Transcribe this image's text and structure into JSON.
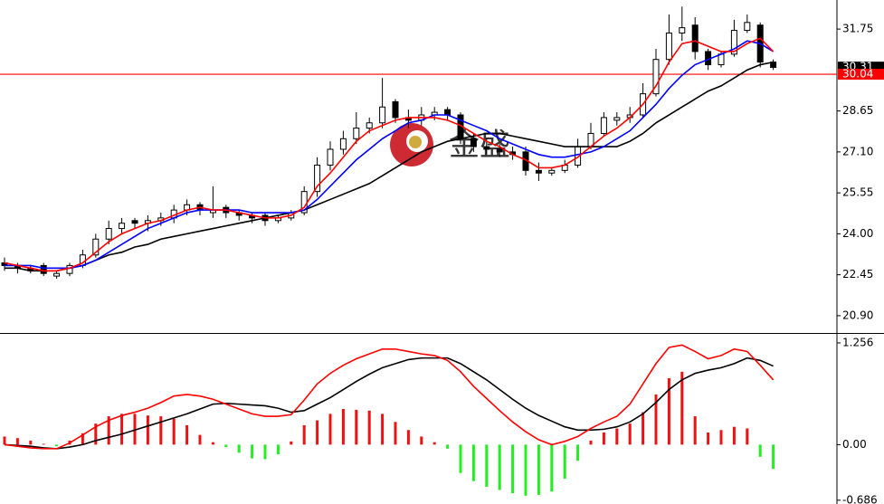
{
  "watermark": "金盛",
  "chart_data": [
    {
      "type": "candlestick",
      "ylim": [
        20.28,
        32.85
      ],
      "yticks": [
        31.75,
        28.65,
        {
          "value": 27.1,
          "label": "27.10"
        },
        25.55,
        {
          "value": 24,
          "label": "24.00"
        },
        22.45,
        {
          "value": 20.9,
          "label": "20.90"
        }
      ],
      "last_price": 30.31,
      "reference_line": 30.04,
      "reference_color": "#ff0000",
      "open": [
        22.9,
        22.8,
        22.7,
        22.8,
        22.4,
        22.5,
        22.8,
        23.2,
        23.8,
        24.2,
        24.5,
        24.4,
        24.5,
        24.6,
        24.9,
        25.1,
        24.8,
        25.0,
        24.8,
        24.7,
        24.7,
        24.5,
        24.6,
        24.8,
        25.6,
        26.6,
        27.2,
        27.6,
        28.0,
        28.2,
        29.0,
        28.4,
        28.3,
        28.5,
        28.7,
        28.5,
        27.6,
        27.3,
        27.2,
        27.1,
        27.1,
        26.4,
        26.3,
        26.4,
        26.6,
        27.3,
        27.8,
        28.3,
        28.4,
        28.5,
        29.3,
        30.6,
        31.6,
        31.9,
        30.9,
        30.4,
        30.8,
        31.7,
        31.9,
        30.5
      ],
      "high": [
        23.1,
        22.9,
        22.8,
        22.9,
        22.6,
        22.9,
        23.4,
        24.0,
        24.5,
        24.6,
        24.6,
        24.7,
        24.8,
        25.1,
        25.3,
        25.2,
        25.8,
        25.1,
        24.9,
        24.8,
        24.8,
        24.7,
        24.9,
        25.8,
        26.9,
        27.5,
        27.9,
        28.6,
        28.4,
        29.9,
        29.1,
        28.7,
        28.8,
        28.8,
        28.8,
        28.6,
        27.8,
        27.6,
        27.4,
        27.3,
        27.3,
        26.7,
        26.5,
        26.8,
        27.6,
        28.2,
        28.6,
        28.6,
        28.8,
        29.7,
        31.0,
        32.3,
        32.6,
        32.2,
        31.0,
        30.9,
        32.1,
        32.3,
        32.0,
        30.6
      ],
      "low": [
        22.6,
        22.5,
        22.5,
        22.4,
        22.3,
        22.4,
        22.7,
        23.1,
        23.6,
        24.0,
        24.2,
        24.1,
        24.3,
        24.4,
        24.7,
        24.7,
        24.6,
        24.6,
        24.5,
        24.4,
        24.3,
        24.4,
        24.5,
        24.7,
        25.4,
        26.4,
        27.0,
        27.4,
        27.8,
        28.0,
        28.2,
        28.0,
        28.1,
        28.3,
        28.3,
        27.4,
        27.1,
        27.0,
        26.9,
        26.8,
        26.2,
        26.0,
        26.2,
        26.3,
        26.5,
        27.2,
        27.7,
        28.1,
        28.2,
        28.4,
        29.2,
        30.4,
        31.3,
        30.6,
        30.2,
        30.3,
        30.7,
        31.6,
        30.3,
        30.2
      ],
      "close": [
        22.8,
        22.7,
        22.6,
        22.5,
        22.5,
        22.8,
        23.2,
        23.8,
        24.2,
        24.4,
        24.4,
        24.5,
        24.6,
        24.9,
        25.1,
        24.9,
        24.9,
        24.8,
        24.7,
        24.6,
        24.5,
        24.6,
        24.8,
        25.6,
        26.6,
        27.2,
        27.6,
        28.0,
        28.2,
        28.8,
        28.4,
        28.3,
        28.5,
        28.6,
        28.5,
        27.6,
        27.3,
        27.2,
        27.1,
        27.0,
        26.4,
        26.3,
        26.4,
        26.6,
        27.3,
        27.8,
        28.4,
        28.4,
        28.5,
        29.3,
        30.6,
        31.6,
        31.8,
        30.9,
        30.4,
        30.8,
        31.7,
        32.0,
        30.5,
        30.3
      ],
      "series": [
        {
          "color": "#000000",
          "values": [
            22.7,
            22.7,
            22.6,
            22.6,
            22.6,
            22.7,
            22.8,
            23.0,
            23.2,
            23.3,
            23.5,
            23.6,
            23.8,
            23.9,
            24.0,
            24.1,
            24.2,
            24.3,
            24.4,
            24.5,
            24.6,
            24.7,
            24.8,
            24.9,
            25.1,
            25.3,
            25.5,
            25.7,
            25.9,
            26.2,
            26.5,
            26.8,
            27.1,
            27.3,
            27.5,
            27.6,
            27.7,
            27.8,
            27.8,
            27.7,
            27.6,
            27.5,
            27.4,
            27.3,
            27.3,
            27.3,
            27.3,
            27.3,
            27.5,
            27.8,
            28.2,
            28.5,
            28.8,
            29.1,
            29.4,
            29.6,
            29.9,
            30.2,
            30.4,
            30.5
          ]
        },
        {
          "color": "#0000ff",
          "values": [
            22.8,
            22.8,
            22.8,
            22.7,
            22.7,
            22.7,
            22.8,
            23.0,
            23.3,
            23.6,
            23.9,
            24.2,
            24.4,
            24.6,
            24.8,
            24.9,
            24.9,
            24.9,
            24.9,
            24.8,
            24.8,
            24.8,
            24.8,
            24.9,
            25.3,
            25.8,
            26.3,
            26.8,
            27.2,
            27.6,
            27.9,
            28.2,
            28.3,
            28.5,
            28.5,
            28.3,
            28.1,
            27.9,
            27.6,
            27.4,
            27.2,
            27.0,
            26.9,
            26.9,
            27.0,
            27.1,
            27.3,
            27.6,
            27.9,
            28.4,
            28.9,
            29.5,
            30.0,
            30.4,
            30.6,
            30.8,
            31.0,
            31.3,
            31.2,
            30.9
          ]
        },
        {
          "color": "#ff0000",
          "values": [
            22.9,
            22.8,
            22.7,
            22.6,
            22.6,
            22.7,
            22.9,
            23.3,
            23.7,
            24.0,
            24.2,
            24.4,
            24.5,
            24.7,
            24.9,
            25.0,
            24.9,
            24.9,
            24.8,
            24.7,
            24.6,
            24.6,
            24.7,
            25.0,
            25.8,
            26.3,
            26.9,
            27.5,
            27.9,
            28.1,
            28.3,
            28.4,
            28.4,
            28.4,
            28.3,
            28.1,
            27.8,
            27.5,
            27.3,
            27.0,
            26.8,
            26.5,
            26.5,
            26.6,
            26.9,
            27.3,
            27.7,
            28.0,
            28.4,
            28.9,
            29.6,
            30.5,
            31.2,
            31.3,
            31.1,
            30.9,
            30.9,
            31.2,
            31.4,
            30.9
          ]
        }
      ]
    },
    {
      "type": "macd",
      "ylim": [
        -0.733,
        1.345
      ],
      "yticks": [
        1.256,
        {
          "value": 0,
          "label": "0.00"
        },
        -0.686
      ],
      "positive_color": "#ee1111",
      "negative_color": "#22ee22",
      "values": [
        0.1,
        0.08,
        0.05,
        0.01,
        -0.02,
        0.05,
        0.14,
        0.26,
        0.35,
        0.38,
        0.38,
        0.36,
        0.35,
        0.32,
        0.24,
        0.12,
        0.03,
        -0.03,
        -0.1,
        -0.17,
        -0.18,
        -0.12,
        0.04,
        0.24,
        0.3,
        0.38,
        0.44,
        0.43,
        0.42,
        0.38,
        0.28,
        0.18,
        0.1,
        0.03,
        -0.05,
        -0.35,
        -0.45,
        -0.52,
        -0.56,
        -0.6,
        -0.63,
        -0.62,
        -0.58,
        -0.42,
        -0.2,
        0.05,
        0.15,
        0.2,
        0.26,
        0.4,
        0.62,
        0.82,
        0.9,
        0.35,
        0.15,
        0.18,
        0.22,
        0.2,
        -0.15,
        -0.3
      ],
      "series": [
        {
          "color": "#000000",
          "values": [
            0.0,
            -0.01,
            -0.02,
            -0.04,
            -0.05,
            -0.03,
            0.0,
            0.05,
            0.09,
            0.13,
            0.18,
            0.23,
            0.28,
            0.33,
            0.38,
            0.44,
            0.5,
            0.51,
            0.5,
            0.49,
            0.48,
            0.45,
            0.4,
            0.42,
            0.5,
            0.58,
            0.68,
            0.78,
            0.87,
            0.95,
            1.0,
            1.05,
            1.07,
            1.07,
            1.07,
            1.0,
            0.9,
            0.8,
            0.68,
            0.56,
            0.45,
            0.36,
            0.29,
            0.22,
            0.18,
            0.18,
            0.19,
            0.22,
            0.28,
            0.38,
            0.52,
            0.68,
            0.8,
            0.88,
            0.92,
            0.95,
            1.0,
            1.07,
            1.04,
            0.97
          ]
        },
        {
          "color": "#ff0000",
          "values": [
            0.0,
            -0.02,
            -0.04,
            -0.05,
            -0.05,
            0.02,
            0.12,
            0.22,
            0.3,
            0.36,
            0.4,
            0.45,
            0.52,
            0.6,
            0.62,
            0.6,
            0.56,
            0.5,
            0.44,
            0.38,
            0.35,
            0.35,
            0.37,
            0.55,
            0.75,
            0.88,
            0.98,
            1.06,
            1.12,
            1.18,
            1.18,
            1.15,
            1.12,
            1.1,
            1.04,
            0.9,
            0.72,
            0.57,
            0.42,
            0.28,
            0.16,
            0.06,
            0.0,
            0.04,
            0.1,
            0.2,
            0.28,
            0.35,
            0.5,
            0.75,
            1.0,
            1.2,
            1.23,
            1.15,
            1.06,
            1.1,
            1.18,
            1.15,
            0.98,
            0.8
          ]
        }
      ]
    }
  ]
}
